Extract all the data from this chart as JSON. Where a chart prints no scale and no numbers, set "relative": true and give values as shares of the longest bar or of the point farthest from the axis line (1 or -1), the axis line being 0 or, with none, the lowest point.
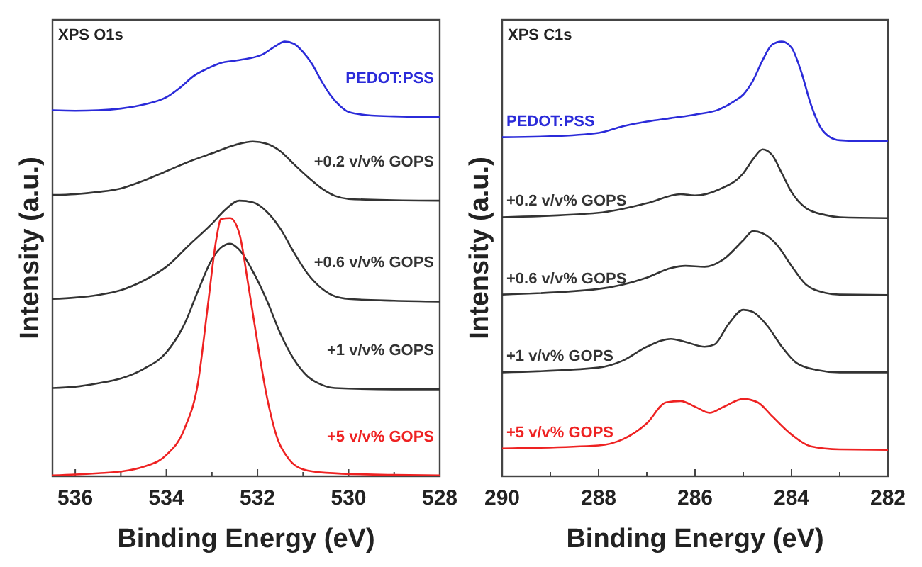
{
  "chart_data": [
    {
      "type": "line",
      "title": "XPS O1s",
      "xlabel": "Binding Energy (eV)",
      "ylabel": "Intensity (a.u.)",
      "relative": true,
      "tick_labels": "x",
      "xlim": [
        536.5,
        528
      ],
      "xticks": [
        536,
        {
          "value": 535,
          "label": null
        },
        534,
        {
          "value": 533,
          "label": null
        },
        532,
        {
          "value": 531,
          "label": null
        },
        530,
        {
          "value": 529,
          "label": null
        },
        528
      ],
      "series": [
        {
          "name": "PEDOT:PSS",
          "color": "#2b2bd9",
          "x": [
            536.5,
            536,
            535.5,
            535,
            534.5,
            534,
            533.7,
            533.4,
            533.1,
            532.8,
            532.5,
            532.2,
            531.9,
            531.6,
            531.4,
            531.2,
            531,
            530.8,
            530.6,
            530.4,
            530.2,
            530,
            529.5,
            529,
            528.5,
            528
          ],
          "values": [
            0.842,
            0.841,
            0.842,
            0.846,
            0.855,
            0.872,
            0.894,
            0.921,
            0.938,
            0.951,
            0.956,
            0.961,
            0.97,
            0.99,
            1,
            0.995,
            0.976,
            0.948,
            0.91,
            0.877,
            0.853,
            0.838,
            0.83,
            0.828,
            0.827,
            0.827
          ]
        },
        {
          "name": "+0.2 v/v% GOPS",
          "color": "#333333",
          "x": [
            536.5,
            536,
            535.5,
            535,
            534.5,
            534,
            533.5,
            533,
            532.5,
            532.1,
            531.8,
            531.5,
            531.2,
            530.9,
            530.6,
            530.3,
            530,
            529,
            528
          ],
          "values": [
            0.647,
            0.649,
            0.654,
            0.662,
            0.68,
            0.702,
            0.724,
            0.743,
            0.762,
            0.77,
            0.765,
            0.748,
            0.718,
            0.689,
            0.663,
            0.645,
            0.638,
            0.635,
            0.634
          ]
        },
        {
          "name": "+0.6 v/v% GOPS",
          "color": "#333333",
          "x": [
            536.5,
            536,
            535.5,
            535,
            534.5,
            534,
            533.5,
            533,
            532.7,
            532.4,
            532.1,
            531.8,
            531.5,
            531.2,
            530.9,
            530.6,
            530.3,
            530,
            529,
            528
          ],
          "values": [
            0.408,
            0.411,
            0.417,
            0.428,
            0.45,
            0.482,
            0.532,
            0.581,
            0.614,
            0.634,
            0.63,
            0.609,
            0.57,
            0.515,
            0.466,
            0.433,
            0.414,
            0.408,
            0.404,
            0.402
          ]
        },
        {
          "name": "+1 v/v% GOPS",
          "color": "#333333",
          "x": [
            536.5,
            536,
            535.5,
            535,
            534.5,
            534,
            533.6,
            533.3,
            533,
            532.8,
            532.6,
            532.4,
            532.1,
            531.8,
            531.5,
            531.2,
            530.9,
            530.6,
            530.3,
            529,
            528
          ],
          "values": [
            0.203,
            0.206,
            0.214,
            0.225,
            0.247,
            0.285,
            0.351,
            0.428,
            0.499,
            0.526,
            0.535,
            0.521,
            0.471,
            0.406,
            0.329,
            0.269,
            0.23,
            0.211,
            0.203,
            0.2,
            0.2
          ]
        },
        {
          "name": "+5 v/v% GOPS",
          "color": "#ee2222",
          "x": [
            536.5,
            536,
            535.5,
            535,
            534.5,
            534,
            533.6,
            533.3,
            533.1,
            532.9,
            532.8,
            532.6,
            532.4,
            532.2,
            532,
            531.8,
            531.6,
            531.3,
            531,
            530.5,
            529,
            528
          ],
          "values": [
            0.002,
            0.004,
            0.007,
            0.011,
            0.022,
            0.049,
            0.11,
            0.219,
            0.384,
            0.548,
            0.592,
            0.594,
            0.559,
            0.439,
            0.307,
            0.186,
            0.099,
            0.038,
            0.016,
            0.008,
            0.003,
            0.002
          ]
        }
      ]
    },
    {
      "type": "line",
      "title": "XPS C1s",
      "xlabel": "Binding Energy (eV)",
      "ylabel": "Intensity (a.u.)",
      "relative": true,
      "tick_labels": "x",
      "xlim": [
        290,
        282
      ],
      "xticks": [
        290,
        {
          "value": 289,
          "label": null
        },
        288,
        {
          "value": 287,
          "label": null
        },
        286,
        {
          "value": 285,
          "label": null
        },
        284,
        {
          "value": 283,
          "label": null
        },
        282
      ],
      "series": [
        {
          "name": "PEDOT:PSS",
          "color": "#2b2bd9",
          "x": [
            290,
            289,
            288,
            287.5,
            287,
            286.5,
            286,
            285.5,
            285.2,
            285,
            284.8,
            284.6,
            284.4,
            284.2,
            284,
            283.8,
            283.6,
            283.4,
            283.2,
            283,
            282.5,
            282
          ],
          "values": [
            0.78,
            0.782,
            0.79,
            0.805,
            0.816,
            0.824,
            0.832,
            0.844,
            0.862,
            0.878,
            0.91,
            0.957,
            0.993,
            1,
            0.986,
            0.931,
            0.856,
            0.803,
            0.78,
            0.773,
            0.771,
            0.771
          ]
        },
        {
          "name": "+0.2 v/v% GOPS",
          "color": "#333333",
          "x": [
            290,
            288,
            287,
            286.3,
            286,
            285.5,
            285,
            284.8,
            284.6,
            284.4,
            284.2,
            284,
            283.7,
            283.3,
            283,
            282
          ],
          "values": [
            0.596,
            0.606,
            0.628,
            0.649,
            0.646,
            0.66,
            0.697,
            0.729,
            0.752,
            0.739,
            0.697,
            0.654,
            0.617,
            0.601,
            0.596,
            0.594
          ]
        },
        {
          "name": "+0.6 v/v% GOPS",
          "color": "#333333",
          "x": [
            290,
            288,
            287,
            286.5,
            286.2,
            285.8,
            285.4,
            285,
            284.8,
            284.6,
            284.3,
            284,
            283.7,
            283.3,
            283,
            282
          ],
          "values": [
            0.418,
            0.431,
            0.457,
            0.479,
            0.484,
            0.482,
            0.5,
            0.543,
            0.564,
            0.559,
            0.532,
            0.484,
            0.441,
            0.422,
            0.418,
            0.417
          ]
        },
        {
          "name": "+1 v/v% GOPS",
          "color": "#333333",
          "x": [
            290,
            288,
            287.5,
            287,
            286.5,
            286.2,
            285.8,
            285.6,
            285.3,
            285,
            284.8,
            284.5,
            284.2,
            283.9,
            283.5,
            283,
            282
          ],
          "values": [
            0.239,
            0.25,
            0.266,
            0.298,
            0.316,
            0.309,
            0.298,
            0.303,
            0.351,
            0.383,
            0.378,
            0.346,
            0.298,
            0.261,
            0.245,
            0.239,
            0.239
          ]
        },
        {
          "name": "+5 v/v% GOPS",
          "color": "#ee2222",
          "x": [
            290,
            288,
            287.5,
            287,
            286.6,
            286.3,
            286,
            285.7,
            285.4,
            285,
            284.7,
            284.4,
            284,
            283.6,
            283,
            282
          ],
          "values": [
            0.064,
            0.071,
            0.085,
            0.122,
            0.17,
            0.173,
            0.16,
            0.146,
            0.16,
            0.178,
            0.17,
            0.138,
            0.096,
            0.069,
            0.062,
            0.061
          ]
        }
      ]
    }
  ]
}
